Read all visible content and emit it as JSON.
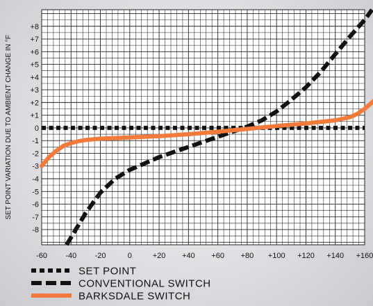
{
  "chart_data": {
    "type": "line",
    "title": "",
    "xlabel": "",
    "ylabel": "SET POINT VARIATION DUE TO AMBIENT CHANGE IN °F",
    "xlim": [
      -60,
      160
    ],
    "ylim": [
      -9.2,
      9.3
    ],
    "grid": true,
    "x_ticks": [
      "-60",
      "-40",
      "-20",
      "0",
      "+20",
      "+40",
      "+60",
      "+80",
      "+100",
      "+120",
      "+140",
      "+160"
    ],
    "y_ticks": [
      "+8",
      "+7",
      "+6",
      "+5",
      "+4",
      "+3",
      "+2",
      "+1",
      "0",
      "-1",
      "-2",
      "-3",
      "-4",
      "-5",
      "-6",
      "-7",
      "-8"
    ],
    "legend_position": "bottom",
    "series": [
      {
        "name": "SET POINT",
        "style": "dotted",
        "color": "#111111",
        "x": [
          -60,
          160
        ],
        "y": [
          0,
          0
        ]
      },
      {
        "name": "CONVENTIONAL SWITCH",
        "style": "dashed",
        "color": "#111111",
        "x": [
          -43,
          -30,
          -20,
          -10,
          0,
          10,
          20,
          30,
          40,
          50,
          60,
          70,
          80,
          90,
          100,
          110,
          120,
          130,
          140,
          150,
          160,
          165
        ],
        "y": [
          -9.2,
          -6.7,
          -5.1,
          -4.0,
          -3.3,
          -2.8,
          -2.3,
          -1.9,
          -1.5,
          -1.1,
          -0.7,
          -0.3,
          0.1,
          0.6,
          1.3,
          2.2,
          3.2,
          4.4,
          5.8,
          7.2,
          8.5,
          9.3
        ]
      },
      {
        "name": "BARKSDALE SWITCH",
        "style": "solid",
        "color": "#f47a3c",
        "x": [
          -60,
          -55,
          -50,
          -45,
          -40,
          -35,
          -30,
          -20,
          0,
          20,
          40,
          60,
          80,
          100,
          120,
          140,
          150,
          155,
          160,
          167
        ],
        "y": [
          -3.0,
          -2.3,
          -1.8,
          -1.4,
          -1.2,
          -1.05,
          -0.95,
          -0.85,
          -0.75,
          -0.65,
          -0.5,
          -0.3,
          -0.08,
          0.15,
          0.35,
          0.6,
          0.85,
          1.1,
          1.5,
          2.2
        ]
      }
    ]
  }
}
